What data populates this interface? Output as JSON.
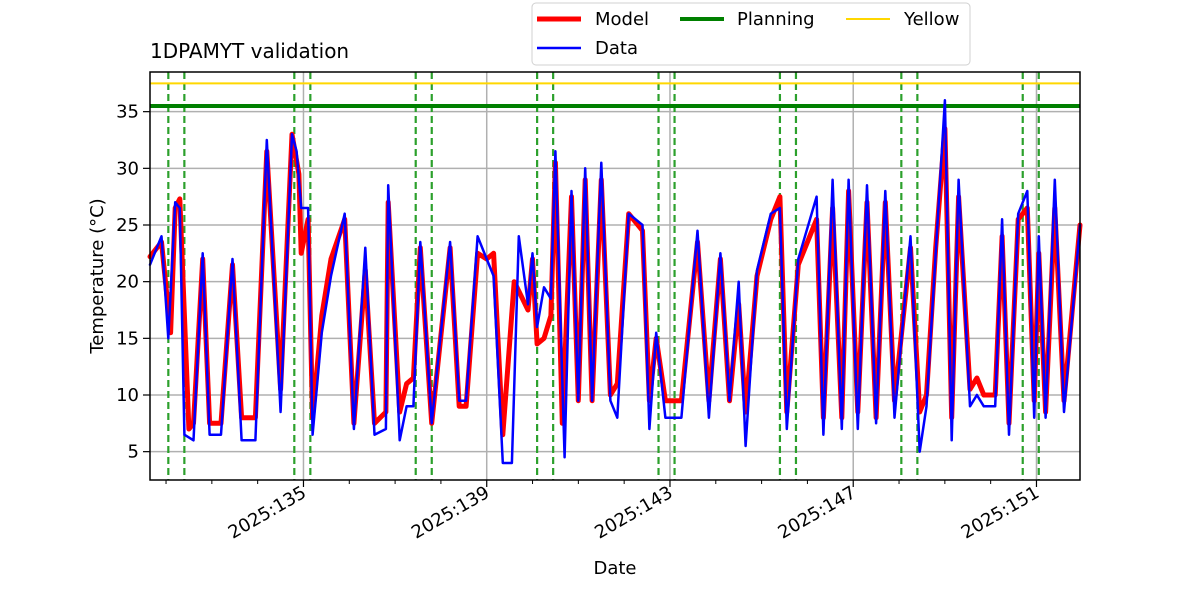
{
  "chart_data": {
    "type": "line",
    "title": "1DPAMYT validation",
    "xlabel": "Date",
    "ylabel": "Temperature ($^\\circ$C)",
    "ylabel_display": "Temperature (°C)",
    "xlim": [
      131.65,
      151.95
    ],
    "ylim": [
      2.5,
      38.5
    ],
    "x_ticks": [
      135,
      139,
      143,
      147,
      151
    ],
    "x_tick_labels": [
      "2025:135",
      "2025:139",
      "2025:143",
      "2025:147",
      "2025:151"
    ],
    "x_minor_ticks": [
      132,
      133,
      134,
      136,
      137,
      138,
      140,
      141,
      142,
      144,
      145,
      146,
      148,
      149,
      150
    ],
    "y_ticks": [
      5,
      10,
      15,
      20,
      25,
      30,
      35
    ],
    "grid": true,
    "legend": {
      "placement": "top-center outside",
      "entries": [
        {
          "name": "Model",
          "color": "#ff0000"
        },
        {
          "name": "Data",
          "color": "#0000ff"
        },
        {
          "name": "Planning",
          "color": "#008000"
        },
        {
          "name": "Yellow",
          "color": "#ffd700"
        }
      ]
    },
    "planning_limit": 35.5,
    "yellow_limit": 37.5,
    "vertical_markers_x": [
      132.05,
      132.4,
      134.8,
      135.15,
      137.45,
      137.8,
      140.1,
      140.45,
      142.75,
      143.1,
      145.4,
      145.75,
      148.05,
      148.4,
      150.7,
      151.05
    ],
    "series": [
      {
        "name": "Model",
        "color": "#ff0000",
        "points": [
          [
            131.65,
            22.2
          ],
          [
            131.9,
            23.5
          ],
          [
            132.1,
            15.5
          ],
          [
            132.2,
            26.5
          ],
          [
            132.3,
            27.3
          ],
          [
            132.5,
            7.0
          ],
          [
            132.6,
            7.5
          ],
          [
            132.8,
            22.0
          ],
          [
            132.95,
            7.5
          ],
          [
            133.2,
            7.5
          ],
          [
            133.45,
            21.5
          ],
          [
            133.65,
            8.0
          ],
          [
            133.95,
            8.0
          ],
          [
            134.2,
            31.5
          ],
          [
            134.5,
            10.5
          ],
          [
            134.75,
            33.0
          ],
          [
            134.9,
            29.5
          ],
          [
            134.95,
            22.5
          ],
          [
            135.1,
            25.5
          ],
          [
            135.2,
            8.0
          ],
          [
            135.4,
            17.0
          ],
          [
            135.6,
            22.0
          ],
          [
            135.9,
            25.5
          ],
          [
            136.1,
            7.5
          ],
          [
            136.35,
            21.0
          ],
          [
            136.55,
            7.5
          ],
          [
            136.8,
            8.5
          ],
          [
            136.85,
            27.0
          ],
          [
            137.1,
            8.5
          ],
          [
            137.25,
            11.0
          ],
          [
            137.4,
            11.5
          ],
          [
            137.55,
            23.0
          ],
          [
            137.8,
            7.5
          ],
          [
            138.2,
            23.0
          ],
          [
            138.4,
            9.0
          ],
          [
            138.55,
            9.0
          ],
          [
            138.8,
            22.5
          ],
          [
            139.0,
            22.0
          ],
          [
            139.15,
            22.5
          ],
          [
            139.35,
            6.5
          ],
          [
            139.6,
            20.0
          ],
          [
            139.9,
            17.5
          ],
          [
            140.0,
            22.0
          ],
          [
            140.1,
            14.5
          ],
          [
            140.25,
            15.0
          ],
          [
            140.4,
            17.0
          ],
          [
            140.5,
            30.5
          ],
          [
            140.65,
            7.5
          ],
          [
            140.85,
            27.5
          ],
          [
            141.0,
            9.5
          ],
          [
            141.15,
            29.0
          ],
          [
            141.3,
            9.5
          ],
          [
            141.5,
            29.0
          ],
          [
            141.7,
            10.0
          ],
          [
            141.85,
            11.0
          ],
          [
            142.1,
            26.0
          ],
          [
            142.4,
            24.5
          ],
          [
            142.55,
            9.5
          ],
          [
            142.7,
            15.0
          ],
          [
            142.9,
            9.5
          ],
          [
            143.25,
            9.5
          ],
          [
            143.6,
            23.5
          ],
          [
            143.85,
            9.5
          ],
          [
            144.1,
            22.0
          ],
          [
            144.3,
            9.5
          ],
          [
            144.5,
            18.0
          ],
          [
            144.65,
            8.5
          ],
          [
            144.9,
            20.5
          ],
          [
            145.2,
            25.5
          ],
          [
            145.4,
            27.5
          ],
          [
            145.55,
            8.5
          ],
          [
            145.8,
            21.5
          ],
          [
            146.2,
            25.5
          ],
          [
            146.35,
            8.0
          ],
          [
            146.55,
            26.5
          ],
          [
            146.75,
            8.0
          ],
          [
            146.9,
            28.0
          ],
          [
            147.1,
            8.5
          ],
          [
            147.3,
            27.0
          ],
          [
            147.5,
            8.0
          ],
          [
            147.7,
            27.0
          ],
          [
            147.9,
            9.5
          ],
          [
            148.25,
            23.0
          ],
          [
            148.45,
            8.5
          ],
          [
            148.6,
            10.0
          ],
          [
            148.8,
            23.0
          ],
          [
            149.0,
            33.5
          ],
          [
            149.15,
            8.0
          ],
          [
            149.3,
            27.5
          ],
          [
            149.55,
            10.5
          ],
          [
            149.7,
            11.5
          ],
          [
            149.85,
            10.0
          ],
          [
            150.1,
            10.0
          ],
          [
            150.25,
            24.0
          ],
          [
            150.4,
            7.5
          ],
          [
            150.6,
            25.5
          ],
          [
            150.8,
            26.5
          ],
          [
            150.95,
            9.5
          ],
          [
            151.05,
            22.5
          ],
          [
            151.2,
            8.5
          ],
          [
            151.4,
            26.5
          ],
          [
            151.6,
            9.5
          ],
          [
            151.95,
            25.0
          ]
        ]
      },
      {
        "name": "Data",
        "color": "#0000ff",
        "points": [
          [
            131.65,
            21.5
          ],
          [
            131.9,
            24.0
          ],
          [
            132.05,
            15.0
          ],
          [
            132.2,
            27.0
          ],
          [
            132.3,
            26.5
          ],
          [
            132.4,
            6.5
          ],
          [
            132.6,
            6.0
          ],
          [
            132.8,
            22.5
          ],
          [
            132.95,
            6.5
          ],
          [
            133.2,
            6.5
          ],
          [
            133.45,
            22.0
          ],
          [
            133.65,
            6.0
          ],
          [
            133.95,
            6.0
          ],
          [
            134.2,
            32.5
          ],
          [
            134.5,
            8.5
          ],
          [
            134.75,
            33.0
          ],
          [
            134.85,
            31.5
          ],
          [
            134.95,
            26.5
          ],
          [
            135.1,
            26.5
          ],
          [
            135.2,
            6.5
          ],
          [
            135.4,
            15.5
          ],
          [
            135.6,
            20.5
          ],
          [
            135.9,
            26.0
          ],
          [
            136.1,
            7.0
          ],
          [
            136.35,
            23.0
          ],
          [
            136.55,
            6.5
          ],
          [
            136.8,
            7.0
          ],
          [
            136.85,
            28.5
          ],
          [
            137.1,
            6.0
          ],
          [
            137.25,
            9.0
          ],
          [
            137.4,
            9.0
          ],
          [
            137.55,
            23.5
          ],
          [
            137.8,
            7.5
          ],
          [
            138.2,
            23.5
          ],
          [
            138.4,
            9.5
          ],
          [
            138.55,
            9.5
          ],
          [
            138.8,
            24.0
          ],
          [
            139.0,
            22.0
          ],
          [
            139.15,
            20.5
          ],
          [
            139.35,
            4.0
          ],
          [
            139.55,
            4.0
          ],
          [
            139.7,
            24.0
          ],
          [
            139.9,
            18.0
          ],
          [
            140.0,
            22.5
          ],
          [
            140.1,
            16.0
          ],
          [
            140.25,
            19.5
          ],
          [
            140.4,
            18.5
          ],
          [
            140.5,
            31.5
          ],
          [
            140.7,
            4.5
          ],
          [
            140.85,
            28.0
          ],
          [
            141.0,
            9.5
          ],
          [
            141.15,
            30.0
          ],
          [
            141.3,
            9.5
          ],
          [
            141.5,
            30.5
          ],
          [
            141.7,
            9.5
          ],
          [
            141.85,
            8.0
          ],
          [
            142.1,
            26.0
          ],
          [
            142.4,
            25.0
          ],
          [
            142.55,
            7.0
          ],
          [
            142.7,
            15.5
          ],
          [
            142.9,
            8.0
          ],
          [
            143.25,
            8.0
          ],
          [
            143.6,
            24.5
          ],
          [
            143.85,
            8.0
          ],
          [
            144.1,
            22.5
          ],
          [
            144.3,
            9.5
          ],
          [
            144.5,
            20.0
          ],
          [
            144.65,
            5.5
          ],
          [
            144.9,
            21.0
          ],
          [
            145.2,
            26.0
          ],
          [
            145.4,
            26.5
          ],
          [
            145.55,
            7.0
          ],
          [
            145.8,
            22.0
          ],
          [
            146.2,
            27.5
          ],
          [
            146.35,
            6.5
          ],
          [
            146.55,
            29.0
          ],
          [
            146.75,
            7.0
          ],
          [
            146.9,
            29.0
          ],
          [
            147.1,
            7.0
          ],
          [
            147.3,
            28.5
          ],
          [
            147.5,
            7.5
          ],
          [
            147.7,
            28.0
          ],
          [
            147.9,
            8.0
          ],
          [
            148.25,
            24.0
          ],
          [
            148.45,
            5.0
          ],
          [
            148.6,
            9.0
          ],
          [
            148.8,
            22.5
          ],
          [
            149.0,
            36.0
          ],
          [
            149.15,
            6.0
          ],
          [
            149.3,
            29.0
          ],
          [
            149.55,
            9.0
          ],
          [
            149.7,
            10.0
          ],
          [
            149.85,
            9.0
          ],
          [
            150.1,
            9.0
          ],
          [
            150.25,
            25.5
          ],
          [
            150.4,
            6.5
          ],
          [
            150.6,
            26.0
          ],
          [
            150.8,
            28.0
          ],
          [
            150.95,
            8.0
          ],
          [
            151.05,
            24.0
          ],
          [
            151.2,
            8.0
          ],
          [
            151.4,
            29.0
          ],
          [
            151.6,
            8.5
          ],
          [
            151.95,
            25.0
          ]
        ]
      }
    ]
  }
}
